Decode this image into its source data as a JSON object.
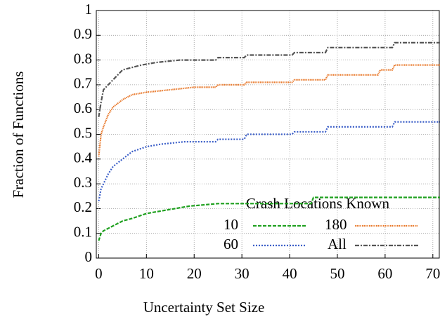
{
  "chart_data": {
    "type": "line",
    "xlabel": "Uncertainty Set Size",
    "ylabel": "Fraction of Functions",
    "legend_title": "Crash Locations Known",
    "legend": "lower right",
    "grid": true,
    "xlim": [
      -0.5,
      71.5
    ],
    "ylim": [
      0,
      1
    ],
    "xticks": [
      0,
      10,
      20,
      30,
      40,
      50,
      60,
      70
    ],
    "yticks": [
      0,
      0.1,
      0.2,
      0.3,
      0.4,
      0.5,
      0.6,
      0.7,
      0.8,
      0.9,
      1
    ],
    "series": [
      {
        "name": "10",
        "color": "#1fa01f",
        "dash": "5 2",
        "x": [
          0,
          0.5,
          1,
          3,
          5,
          7,
          10,
          13,
          16,
          19,
          25,
          44.5,
          45,
          71.5
        ],
        "values": [
          0.07,
          0.1,
          0.11,
          0.13,
          0.15,
          0.16,
          0.18,
          0.19,
          0.2,
          0.21,
          0.22,
          0.22,
          0.245,
          0.245
        ]
      },
      {
        "name": "180",
        "color": "#e8782a",
        "dash": "1.5 1",
        "x": [
          0,
          0.5,
          1,
          2,
          3,
          5,
          7,
          10,
          15,
          20,
          24.5,
          25,
          30.5,
          31,
          40.5,
          41,
          47.5,
          48,
          58.5,
          59,
          61.5,
          62,
          71.5
        ],
        "values": [
          0.41,
          0.5,
          0.53,
          0.58,
          0.61,
          0.64,
          0.66,
          0.67,
          0.68,
          0.69,
          0.69,
          0.7,
          0.7,
          0.71,
          0.71,
          0.72,
          0.72,
          0.74,
          0.74,
          0.76,
          0.76,
          0.78,
          0.78
        ]
      },
      {
        "name": "60",
        "color": "#3c5fc8",
        "dash": "2 2",
        "x": [
          0,
          0.5,
          1,
          2,
          3,
          5,
          7,
          10,
          13,
          18,
          24.5,
          25,
          30.5,
          31,
          40.5,
          41,
          47.5,
          48,
          61.5,
          62,
          71.5
        ],
        "values": [
          0.23,
          0.28,
          0.3,
          0.34,
          0.37,
          0.4,
          0.43,
          0.45,
          0.46,
          0.47,
          0.47,
          0.48,
          0.48,
          0.5,
          0.5,
          0.51,
          0.51,
          0.53,
          0.53,
          0.55,
          0.55
        ]
      },
      {
        "name": "All",
        "color": "#555555",
        "dash": "6 2 2 2",
        "x": [
          0,
          0.5,
          1,
          2,
          3,
          4,
          5,
          7,
          9,
          12,
          17,
          24.5,
          25,
          30.5,
          31,
          40.5,
          41,
          47.5,
          48,
          61.5,
          62,
          71.5
        ],
        "values": [
          0.57,
          0.63,
          0.68,
          0.7,
          0.72,
          0.74,
          0.76,
          0.77,
          0.78,
          0.79,
          0.8,
          0.8,
          0.81,
          0.81,
          0.82,
          0.82,
          0.83,
          0.83,
          0.85,
          0.85,
          0.87,
          0.87
        ]
      }
    ]
  }
}
